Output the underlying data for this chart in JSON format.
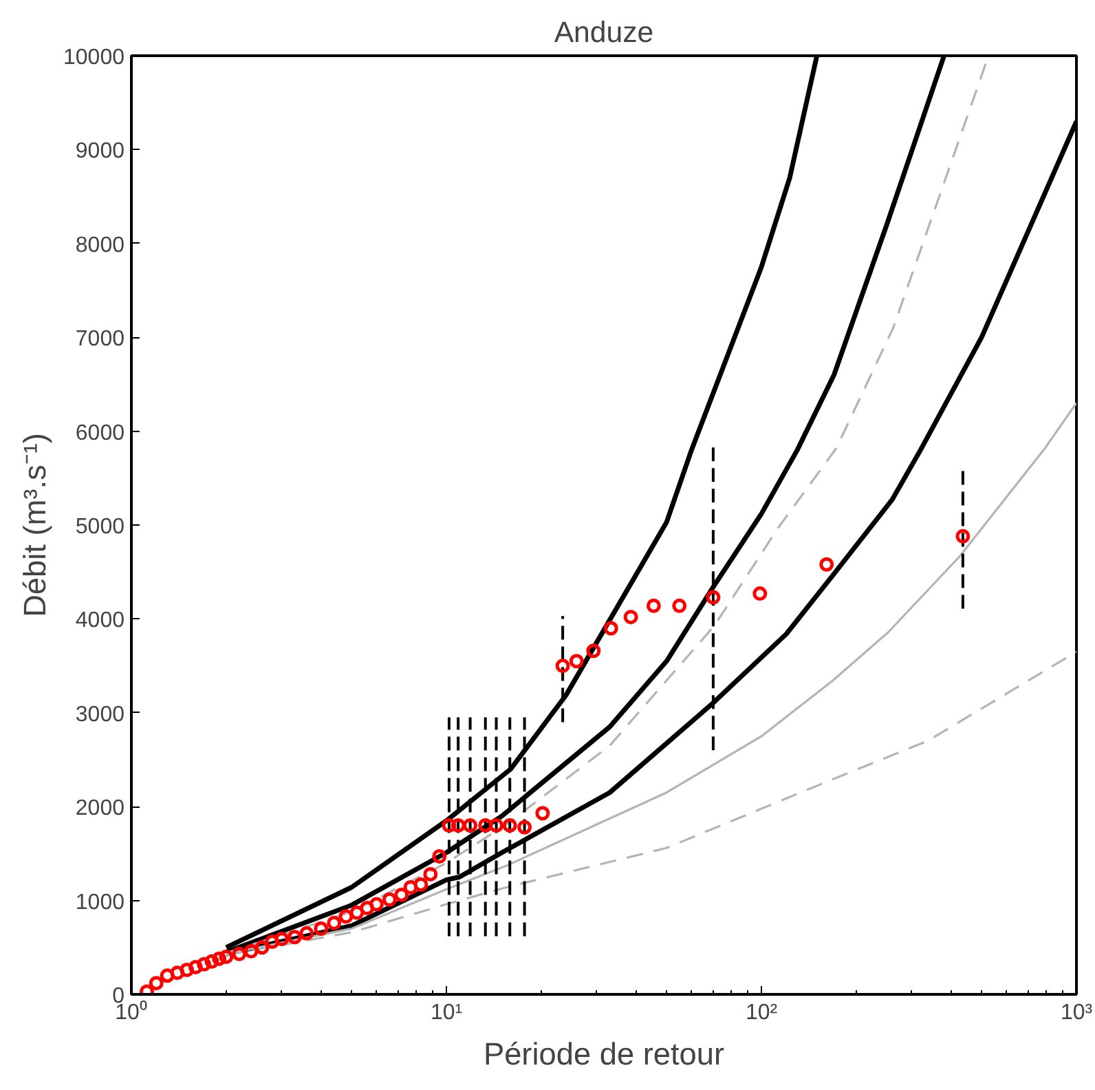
{
  "chart_data": {
    "type": "line",
    "title": "Anduze",
    "xlabel": "Période de retour",
    "ylabel": "Débit (m³.s⁻¹)",
    "log": "x",
    "grid": false,
    "xlim": [
      1,
      1000
    ],
    "ylim": [
      0,
      10000
    ],
    "xticks": [
      {
        "value": 1,
        "label": "10⁰"
      },
      {
        "value": 10,
        "label": "10¹"
      },
      {
        "value": 100,
        "label": "10²"
      },
      {
        "value": 1000,
        "label": "10³"
      }
    ],
    "yticks": [
      0,
      1000,
      2000,
      3000,
      4000,
      5000,
      6000,
      7000,
      8000,
      9000,
      10000
    ],
    "series": [
      {
        "color": "#000000",
        "line_style": "solid",
        "x": [
          2,
          5,
          10,
          16,
          24,
          50,
          60,
          100,
          123,
          150
        ],
        "values": [
          500,
          1140,
          1850,
          2400,
          3190,
          5030,
          5800,
          7750,
          8700,
          10000
        ]
      },
      {
        "color": "#000000",
        "line_style": "solid",
        "x": [
          2,
          5,
          10,
          15,
          33,
          50,
          70,
          100,
          130,
          170,
          250,
          380
        ],
        "values": [
          450,
          950,
          1510,
          1900,
          2850,
          3550,
          4330,
          5120,
          5800,
          6600,
          8200,
          10000
        ]
      },
      {
        "color": "#000000",
        "line_style": "solid",
        "x": [
          2,
          5,
          10,
          11,
          15,
          33,
          70,
          120,
          170,
          260,
          320,
          500,
          1000
        ],
        "values": [
          430,
          730,
          1220,
          1250,
          1510,
          2150,
          3100,
          3840,
          4480,
          5270,
          5800,
          7000,
          9300
        ]
      },
      {
        "color": "#b4b4b4",
        "line_style": "dashed",
        "x": [
          2,
          5,
          10,
          15.5,
          33,
          71,
          113,
          173,
          262,
          385,
          526
        ],
        "values": [
          440,
          880,
          1400,
          1810,
          2650,
          3930,
          4970,
          5820,
          7100,
          8700,
          10000
        ]
      },
      {
        "color": "#b4b4b4",
        "line_style": "solid",
        "x": [
          2,
          5,
          10,
          15.5,
          50,
          100,
          168,
          253,
          427,
          795,
          1000
        ],
        "values": [
          430,
          700,
          1120,
          1370,
          2150,
          2750,
          3340,
          3860,
          4670,
          5820,
          6300
        ]
      },
      {
        "color": "#b4b4b4",
        "line_style": "dashed",
        "x": [
          2,
          5,
          10,
          15.5,
          50,
          168,
          337,
          1000
        ],
        "values": [
          420,
          660,
          960,
          1140,
          1560,
          2290,
          2700,
          3650
        ]
      },
      {
        "type": "scatter",
        "color": "#ff0000",
        "marker": "circle",
        "x": [
          1.12,
          1.2,
          1.3,
          1.4,
          1.5,
          1.6,
          1.7,
          1.8,
          1.9,
          2.0,
          2.2,
          2.4,
          2.6,
          2.8,
          3.0,
          3.3,
          3.6,
          4.0,
          4.4,
          4.8,
          5.2,
          5.6,
          6.0,
          6.6,
          7.2,
          7.7,
          8.3,
          8.9,
          9.5,
          10.2,
          10.9,
          11.9,
          13.3,
          14.4,
          15.9,
          17.7,
          20.2,
          23.4,
          25.9,
          29.3,
          33.3,
          38.5,
          45.5,
          54.9,
          70.3,
          98.9,
          161,
          436
        ],
        "values": [
          30,
          120,
          200,
          230,
          260,
          290,
          320,
          350,
          380,
          400,
          430,
          460,
          500,
          560,
          590,
          610,
          650,
          700,
          760,
          830,
          870,
          920,
          960,
          1010,
          1060,
          1140,
          1170,
          1280,
          1470,
          1800,
          1800,
          1800,
          1800,
          1800,
          1800,
          1780,
          1930,
          3500,
          3550,
          3660,
          3900,
          4020,
          4140,
          4140,
          4230,
          4270,
          4580,
          4880
        ],
        "errors": [
          null,
          null,
          null,
          null,
          null,
          null,
          null,
          null,
          null,
          null,
          null,
          null,
          null,
          null,
          null,
          null,
          null,
          null,
          null,
          null,
          null,
          null,
          null,
          null,
          null,
          null,
          null,
          null,
          null,
          [
            620,
            2950
          ],
          [
            620,
            2950
          ],
          [
            620,
            2950
          ],
          [
            620,
            2950
          ],
          [
            620,
            2950
          ],
          [
            620,
            2950
          ],
          [
            620,
            2950
          ],
          null,
          [
            2900,
            4030
          ],
          null,
          null,
          null,
          null,
          null,
          null,
          [
            2600,
            5860
          ],
          null,
          null,
          [
            4110,
            5610
          ]
        ]
      }
    ]
  }
}
